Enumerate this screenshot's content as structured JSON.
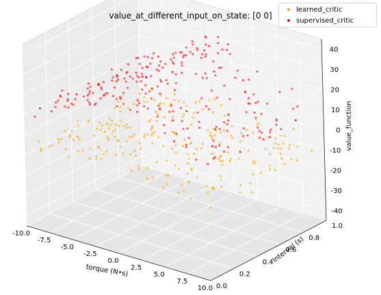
{
  "chart_data": {
    "type": "scatter3d",
    "title": "value_at_different_input_on_state: [0 0]",
    "xlabel": "torque (N•s)",
    "ylabel": "interval (s)",
    "zlabel": "value_function",
    "xlim": [
      -10,
      10
    ],
    "ylim": [
      0,
      1
    ],
    "zlim": [
      -45,
      45
    ],
    "xticks": [
      "-10.0",
      "-7.5",
      "-5.0",
      "-2.5",
      "0.0",
      "2.5",
      "5.0",
      "7.5",
      "10.0"
    ],
    "yticks": [
      "0.0",
      "0.2",
      "0.4",
      "0.6",
      "0.8",
      "1.0"
    ],
    "zticks": [
      "-40",
      "-30",
      "-20",
      "-10",
      "0",
      "10",
      "20",
      "30",
      "40"
    ],
    "grid": true,
    "legend_position": "top-right",
    "series": [
      {
        "name": "learned_critic",
        "color": "#ffa500",
        "z_model": "approximately -10 at torque -10 rising to about 0 near torque 0 and falling back to about -10 at torque 10, nearly independent of interval",
        "points": [
          [
            -9.5,
            0.1,
            -9
          ],
          [
            -8,
            0.3,
            -7
          ],
          [
            -6,
            0.5,
            -5
          ],
          [
            -4,
            0.6,
            -3
          ],
          [
            -2,
            0.4,
            -2
          ],
          [
            0,
            0.5,
            0
          ],
          [
            2,
            0.7,
            -2
          ],
          [
            4,
            0.3,
            -4
          ],
          [
            6,
            0.5,
            -6
          ],
          [
            8,
            0.2,
            -8
          ],
          [
            9.5,
            0.8,
            -10
          ]
        ]
      },
      {
        "name": "supervised_critic",
        "color": "#ff0000",
        "z_model": "approximately 10 at torque -10 rising to about 30 near torque 0 and falling back to about 10 at torque 10, nearly independent of interval",
        "points": [
          [
            -9.5,
            0.1,
            11
          ],
          [
            -8,
            0.3,
            14
          ],
          [
            -6,
            0.5,
            18
          ],
          [
            -4,
            0.6,
            24
          ],
          [
            -2,
            0.4,
            28
          ],
          [
            0,
            0.5,
            30
          ],
          [
            2,
            0.7,
            27
          ],
          [
            4,
            0.3,
            22
          ],
          [
            6,
            0.5,
            17
          ],
          [
            8,
            0.2,
            13
          ],
          [
            9.5,
            0.8,
            10
          ]
        ]
      }
    ]
  }
}
